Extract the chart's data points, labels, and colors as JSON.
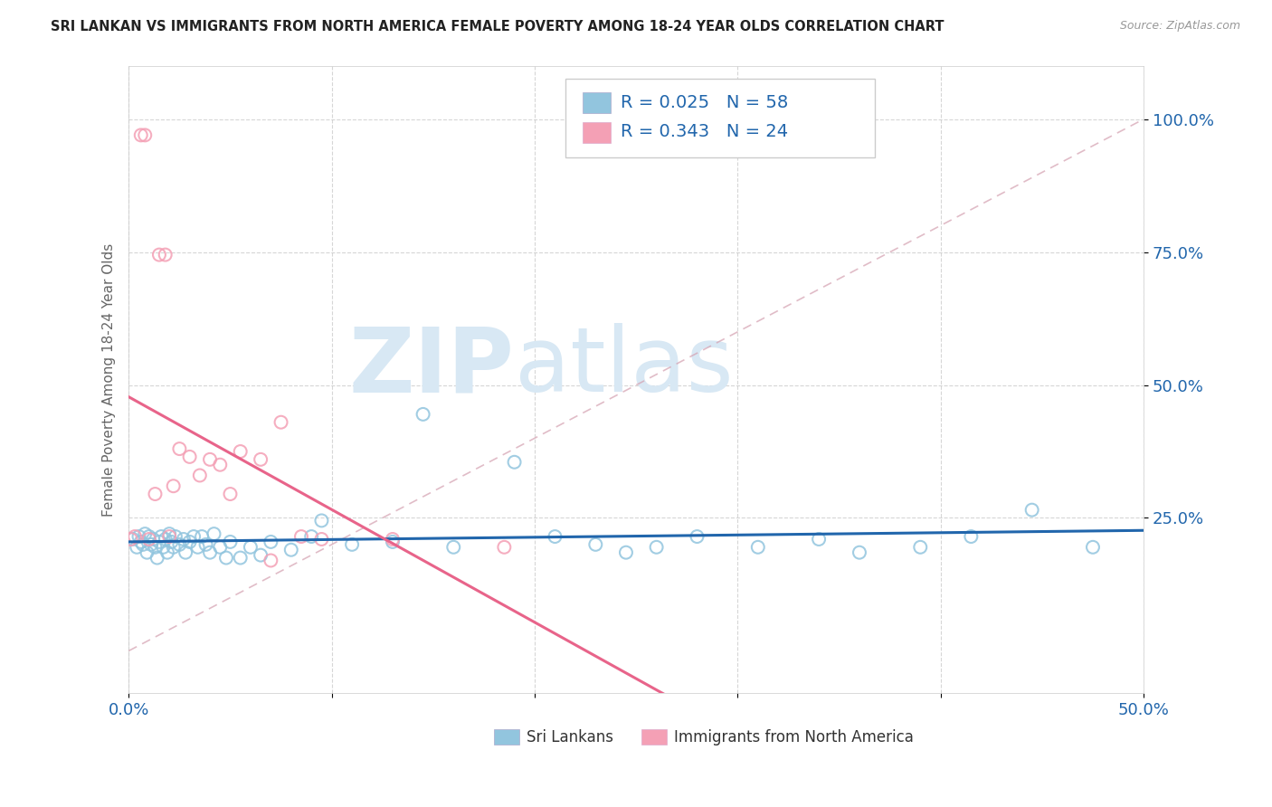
{
  "title": "SRI LANKAN VS IMMIGRANTS FROM NORTH AMERICA FEMALE POVERTY AMONG 18-24 YEAR OLDS CORRELATION CHART",
  "source": "Source: ZipAtlas.com",
  "ylabel": "Female Poverty Among 18-24 Year Olds",
  "xlim": [
    0.0,
    0.5
  ],
  "ylim": [
    -0.08,
    1.1
  ],
  "yticks": [
    0.25,
    0.5,
    0.75,
    1.0
  ],
  "yticklabels": [
    "25.0%",
    "50.0%",
    "75.0%",
    "100.0%"
  ],
  "color_blue": "#92c5de",
  "color_pink": "#f4a0b5",
  "color_blue_line": "#2166ac",
  "color_pink_line": "#e8648a",
  "color_blue_text": "#2166ac",
  "background_color": "#ffffff",
  "watermark_zip": "ZIP",
  "watermark_atlas": "atlas",
  "sri_lankans_x": [
    0.002,
    0.004,
    0.005,
    0.006,
    0.007,
    0.008,
    0.009,
    0.01,
    0.011,
    0.012,
    0.013,
    0.014,
    0.015,
    0.016,
    0.017,
    0.018,
    0.019,
    0.02,
    0.021,
    0.022,
    0.023,
    0.025,
    0.027,
    0.028,
    0.03,
    0.032,
    0.034,
    0.036,
    0.038,
    0.04,
    0.042,
    0.045,
    0.048,
    0.05,
    0.055,
    0.06,
    0.065,
    0.07,
    0.08,
    0.09,
    0.095,
    0.11,
    0.13,
    0.145,
    0.16,
    0.19,
    0.21,
    0.23,
    0.245,
    0.26,
    0.28,
    0.31,
    0.34,
    0.36,
    0.39,
    0.415,
    0.445,
    0.475
  ],
  "sri_lankans_y": [
    0.21,
    0.195,
    0.215,
    0.205,
    0.2,
    0.22,
    0.185,
    0.215,
    0.2,
    0.21,
    0.195,
    0.175,
    0.205,
    0.215,
    0.195,
    0.21,
    0.185,
    0.22,
    0.205,
    0.195,
    0.215,
    0.2,
    0.21,
    0.185,
    0.205,
    0.215,
    0.195,
    0.215,
    0.2,
    0.185,
    0.22,
    0.195,
    0.175,
    0.205,
    0.175,
    0.195,
    0.18,
    0.205,
    0.19,
    0.215,
    0.245,
    0.2,
    0.205,
    0.445,
    0.195,
    0.355,
    0.215,
    0.2,
    0.185,
    0.195,
    0.215,
    0.195,
    0.21,
    0.185,
    0.195,
    0.215,
    0.265,
    0.195
  ],
  "north_america_x": [
    0.001,
    0.003,
    0.006,
    0.008,
    0.01,
    0.013,
    0.015,
    0.018,
    0.02,
    0.022,
    0.025,
    0.03,
    0.035,
    0.04,
    0.045,
    0.05,
    0.055,
    0.065,
    0.07,
    0.075,
    0.085,
    0.095,
    0.13,
    0.185
  ],
  "north_america_y": [
    0.21,
    0.215,
    0.97,
    0.97,
    0.21,
    0.295,
    0.745,
    0.745,
    0.215,
    0.31,
    0.38,
    0.365,
    0.33,
    0.36,
    0.35,
    0.295,
    0.375,
    0.36,
    0.17,
    0.43,
    0.215,
    0.21,
    0.21,
    0.195
  ]
}
